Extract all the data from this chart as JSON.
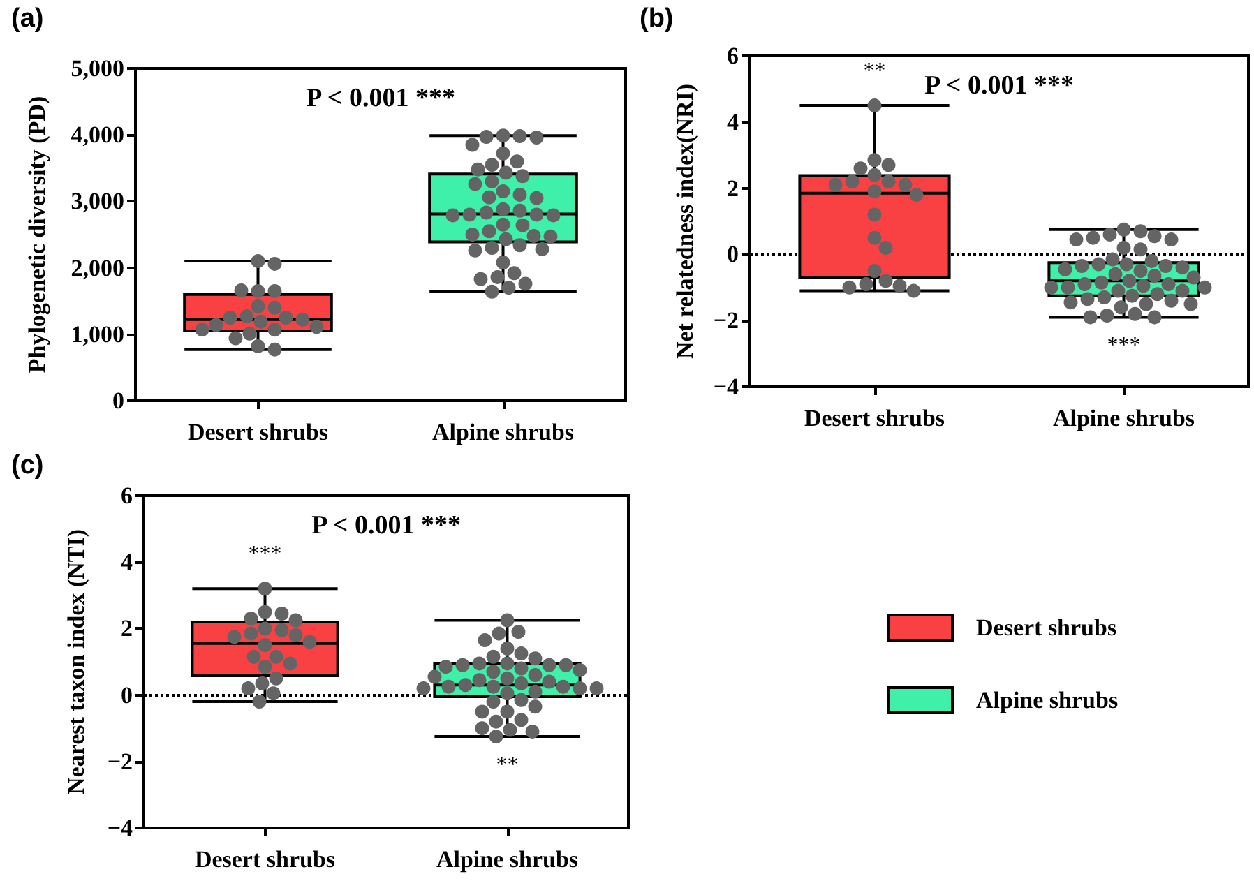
{
  "chart_data": [
    {
      "type": "box",
      "title": "(a)",
      "ylabel": "Phylogenetic diversity (PD)",
      "categories": [
        "Desert shrubs",
        "Alpine shrubs"
      ],
      "series": [
        {
          "type": "box",
          "color": "#f94144",
          "boxes": [
            {
              "low": 770,
              "q1": 1050,
              "median": 1220,
              "q3": 1600,
              "high": 2100
            },
            null
          ]
        },
        {
          "type": "box",
          "color": "#3ff0ab",
          "boxes": [
            null,
            {
              "low": 1640,
              "q1": 2390,
              "median": 2810,
              "q3": 3410,
              "high": 3990
            }
          ]
        },
        {
          "type": "scatter",
          "color": "#646464",
          "x": [
            "Desert shrubs",
            "Desert shrubs",
            "Desert shrubs",
            "Desert shrubs",
            "Desert shrubs",
            "Desert shrubs",
            "Desert shrubs",
            "Desert shrubs",
            "Desert shrubs",
            "Desert shrubs",
            "Desert shrubs",
            "Desert shrubs",
            "Desert shrubs",
            "Desert shrubs",
            "Desert shrubs",
            "Desert shrubs",
            "Desert shrubs",
            "Desert shrubs",
            "Desert shrubs",
            "Desert shrubs",
            "Alpine shrubs",
            "Alpine shrubs",
            "Alpine shrubs",
            "Alpine shrubs",
            "Alpine shrubs",
            "Alpine shrubs",
            "Alpine shrubs",
            "Alpine shrubs",
            "Alpine shrubs",
            "Alpine shrubs",
            "Alpine shrubs",
            "Alpine shrubs",
            "Alpine shrubs",
            "Alpine shrubs",
            "Alpine shrubs",
            "Alpine shrubs",
            "Alpine shrubs",
            "Alpine shrubs",
            "Alpine shrubs",
            "Alpine shrubs",
            "Alpine shrubs",
            "Alpine shrubs",
            "Alpine shrubs",
            "Alpine shrubs",
            "Alpine shrubs",
            "Alpine shrubs",
            "Alpine shrubs",
            "Alpine shrubs",
            "Alpine shrubs",
            "Alpine shrubs",
            "Alpine shrubs",
            "Alpine shrubs",
            "Alpine shrubs",
            "Alpine shrubs",
            "Alpine shrubs",
            "Alpine shrubs",
            "Alpine shrubs",
            "Alpine shrubs",
            "Alpine shrubs",
            "Alpine shrubs",
            "Alpine shrubs",
            "Alpine shrubs"
          ],
          "values": [
            2100,
            2060,
            1650,
            1650,
            1660,
            1420,
            1400,
            1270,
            1250,
            1250,
            1220,
            1190,
            1140,
            1110,
            1070,
            1070,
            1010,
            940,
            820,
            770,
            3990,
            3980,
            3970,
            3960,
            3850,
            3720,
            3600,
            3550,
            3480,
            3430,
            3380,
            3300,
            3260,
            3150,
            3100,
            3060,
            3050,
            2880,
            2860,
            2830,
            2800,
            2800,
            2790,
            2790,
            2650,
            2640,
            2550,
            2500,
            2480,
            2470,
            2430,
            2340,
            2300,
            2260,
            2280,
            2080,
            1920,
            1860,
            1830,
            1760,
            1700,
            1640
          ]
        }
      ],
      "ylim": [
        0,
        5000
      ],
      "yticks": [
        0,
        {
          "value": 1000,
          "label": "1,000"
        },
        {
          "value": 2000,
          "label": "2,000"
        },
        {
          "value": 3000,
          "label": "3,000"
        },
        {
          "value": 4000,
          "label": "4,000"
        },
        {
          "value": 5000,
          "label": "5,000"
        }
      ],
      "grid": false,
      "marker": "circle",
      "annotations": [
        "P < 0.001 ***"
      ]
    },
    {
      "type": "box",
      "title": "(b)",
      "ylabel": "Net relatedness index(NRI)",
      "categories": [
        "Desert shrubs",
        "Alpine shrubs"
      ],
      "series": [
        {
          "type": "box",
          "color": "#f94144",
          "boxes": [
            {
              "low": -1.1,
              "q1": -0.7,
              "median": 1.85,
              "q3": 2.38,
              "high": 4.5
            },
            null
          ]
        },
        {
          "type": "box",
          "color": "#3ff0ab",
          "boxes": [
            null,
            {
              "low": -1.9,
              "q1": -1.25,
              "median": -0.8,
              "q3": -0.25,
              "high": 0.75
            }
          ]
        },
        {
          "type": "scatter",
          "color": "#646464",
          "x": [
            "Desert shrubs",
            "Desert shrubs",
            "Desert shrubs",
            "Desert shrubs",
            "Desert shrubs",
            "Desert shrubs",
            "Desert shrubs",
            "Desert shrubs",
            "Desert shrubs",
            "Desert shrubs",
            "Desert shrubs",
            "Desert shrubs",
            "Desert shrubs",
            "Desert shrubs",
            "Desert shrubs",
            "Desert shrubs",
            "Desert shrubs",
            "Desert shrubs",
            "Desert shrubs",
            "Desert shrubs",
            "Alpine shrubs",
            "Alpine shrubs",
            "Alpine shrubs",
            "Alpine shrubs",
            "Alpine shrubs",
            "Alpine shrubs",
            "Alpine shrubs",
            "Alpine shrubs",
            "Alpine shrubs",
            "Alpine shrubs",
            "Alpine shrubs",
            "Alpine shrubs",
            "Alpine shrubs",
            "Alpine shrubs",
            "Alpine shrubs",
            "Alpine shrubs",
            "Alpine shrubs",
            "Alpine shrubs",
            "Alpine shrubs",
            "Alpine shrubs",
            "Alpine shrubs",
            "Alpine shrubs",
            "Alpine shrubs",
            "Alpine shrubs",
            "Alpine shrubs",
            "Alpine shrubs",
            "Alpine shrubs",
            "Alpine shrubs",
            "Alpine shrubs",
            "Alpine shrubs",
            "Alpine shrubs",
            "Alpine shrubs",
            "Alpine shrubs",
            "Alpine shrubs",
            "Alpine shrubs",
            "Alpine shrubs",
            "Alpine shrubs",
            "Alpine shrubs",
            "Alpine shrubs",
            "Alpine shrubs",
            "Alpine shrubs",
            "Alpine shrubs",
            "Alpine shrubs",
            "Alpine shrubs"
          ],
          "values": [
            4.5,
            2.85,
            2.7,
            2.6,
            2.4,
            2.2,
            2.2,
            2.1,
            2.1,
            1.9,
            1.8,
            1.2,
            0.5,
            0.2,
            -0.5,
            -0.8,
            -0.9,
            -0.95,
            -1.0,
            -1.1,
            0.75,
            0.7,
            0.6,
            0.55,
            0.5,
            0.45,
            0.45,
            0.2,
            0.15,
            -0.15,
            -0.2,
            -0.3,
            -0.3,
            -0.35,
            -0.35,
            -0.4,
            -0.45,
            -0.5,
            -0.6,
            -0.65,
            -0.7,
            -0.8,
            -0.85,
            -0.9,
            -0.9,
            -0.95,
            -1.0,
            -1.0,
            -1.0,
            -1.1,
            -1.1,
            -1.2,
            -1.25,
            -1.3,
            -1.35,
            -1.4,
            -1.45,
            -1.5,
            -1.5,
            -1.6,
            -1.8,
            -1.85,
            -1.9,
            -1.9
          ]
        }
      ],
      "ylim": [
        -4,
        6
      ],
      "yticks": [
        {
          "value": -4,
          "label": "−4"
        },
        {
          "value": -2,
          "label": "−2"
        },
        0,
        2,
        4,
        6
      ],
      "ref_lines": [
        {
          "axis": "y",
          "value": 0,
          "line_style": "dotted",
          "color": "#000000"
        }
      ],
      "grid": false,
      "marker": "circle",
      "annotations": [
        "P < 0.001 ***",
        {
          "text": "**",
          "x": "Desert shrubs",
          "y": 4.5
        },
        {
          "text": "***",
          "x": "Alpine shrubs",
          "y": -1.9
        }
      ]
    },
    {
      "type": "box",
      "title": "(c)",
      "ylabel": "Nearest taxon index (NTI)",
      "categories": [
        "Desert shrubs",
        "Alpine shrubs"
      ],
      "series": [
        {
          "type": "box",
          "name": "Desert shrubs",
          "color": "#f94144",
          "boxes": [
            {
              "low": -0.2,
              "q1": 0.58,
              "median": 1.55,
              "q3": 2.2,
              "high": 3.2
            },
            null
          ]
        },
        {
          "type": "box",
          "name": "Alpine shrubs",
          "color": "#3ff0ab",
          "boxes": [
            null,
            {
              "low": -1.25,
              "q1": -0.05,
              "median": 0.3,
              "q3": 0.95,
              "high": 2.25
            }
          ]
        },
        {
          "type": "scatter",
          "color": "#646464",
          "x": [
            "Desert shrubs",
            "Desert shrubs",
            "Desert shrubs",
            "Desert shrubs",
            "Desert shrubs",
            "Desert shrubs",
            "Desert shrubs",
            "Desert shrubs",
            "Desert shrubs",
            "Desert shrubs",
            "Desert shrubs",
            "Desert shrubs",
            "Desert shrubs",
            "Desert shrubs",
            "Desert shrubs",
            "Desert shrubs",
            "Desert shrubs",
            "Desert shrubs",
            "Desert shrubs",
            "Desert shrubs",
            "Desert shrubs",
            "Alpine shrubs",
            "Alpine shrubs",
            "Alpine shrubs",
            "Alpine shrubs",
            "Alpine shrubs",
            "Alpine shrubs",
            "Alpine shrubs",
            "Alpine shrubs",
            "Alpine shrubs",
            "Alpine shrubs",
            "Alpine shrubs",
            "Alpine shrubs",
            "Alpine shrubs",
            "Alpine shrubs",
            "Alpine shrubs",
            "Alpine shrubs",
            "Alpine shrubs",
            "Alpine shrubs",
            "Alpine shrubs",
            "Alpine shrubs",
            "Alpine shrubs",
            "Alpine shrubs",
            "Alpine shrubs",
            "Alpine shrubs",
            "Alpine shrubs",
            "Alpine shrubs",
            "Alpine shrubs",
            "Alpine shrubs",
            "Alpine shrubs",
            "Alpine shrubs",
            "Alpine shrubs",
            "Alpine shrubs",
            "Alpine shrubs",
            "Alpine shrubs",
            "Alpine shrubs",
            "Alpine shrubs",
            "Alpine shrubs",
            "Alpine shrubs",
            "Alpine shrubs",
            "Alpine shrubs",
            "Alpine shrubs",
            "Alpine shrubs",
            "Alpine shrubs"
          ],
          "values": [
            3.2,
            2.5,
            2.45,
            2.3,
            2.25,
            2.0,
            1.95,
            1.85,
            1.8,
            1.75,
            1.6,
            1.5,
            1.15,
            1.15,
            0.95,
            0.85,
            0.5,
            0.35,
            0.2,
            0.05,
            -0.2,
            2.25,
            1.9,
            1.85,
            1.65,
            1.4,
            1.25,
            1.15,
            1.1,
            0.95,
            0.95,
            0.9,
            0.9,
            0.9,
            0.85,
            0.8,
            0.75,
            0.7,
            0.6,
            0.55,
            0.5,
            0.45,
            0.4,
            0.35,
            0.3,
            0.25,
            0.25,
            0.25,
            0.2,
            0.2,
            0.2,
            0.1,
            0.05,
            -0.15,
            -0.2,
            -0.35,
            -0.5,
            -0.5,
            -0.75,
            -0.8,
            -1.0,
            -1.05,
            -1.1,
            -1.25
          ]
        }
      ],
      "ylim": [
        -4,
        6
      ],
      "yticks": [
        {
          "value": -4,
          "label": "−4"
        },
        {
          "value": -2,
          "label": "−2"
        },
        0,
        2,
        4,
        6
      ],
      "ref_lines": [
        {
          "axis": "y",
          "value": 0,
          "line_style": "dotted",
          "color": "#000000"
        }
      ],
      "grid": false,
      "marker": "circle",
      "legend": "right",
      "annotations": [
        "P < 0.001 ***",
        {
          "text": "***",
          "x": "Desert shrubs",
          "y": 3.2
        },
        {
          "text": "**",
          "x": "Alpine shrubs",
          "y": -1.25
        }
      ]
    }
  ]
}
